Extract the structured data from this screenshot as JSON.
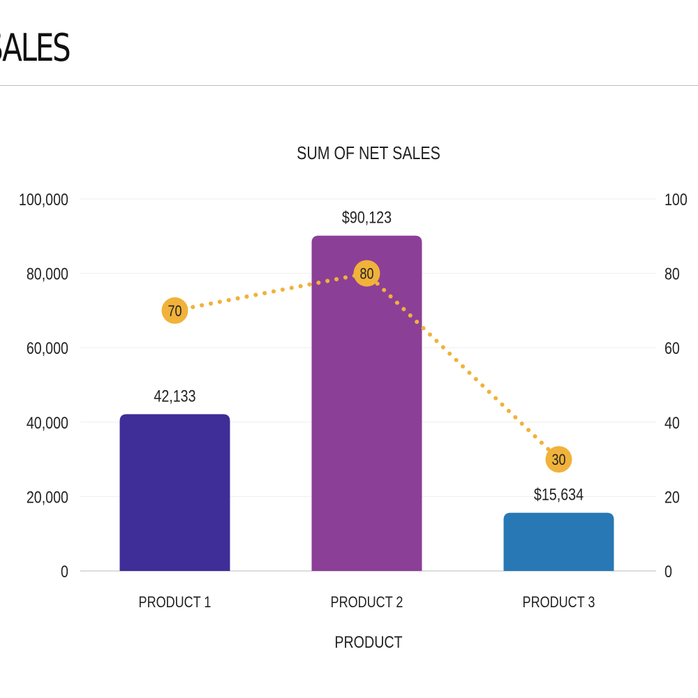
{
  "header": {
    "title": "SALES"
  },
  "chart_data": {
    "type": "bar",
    "title": "SUM OF NET SALES",
    "xlabel": "PRODUCT",
    "ylabel": "",
    "categories": [
      "PRODUCT 1",
      "PRODUCT 2",
      "PRODUCT 3"
    ],
    "series": [
      {
        "type": "bar",
        "axis": "left",
        "values": [
          42133,
          90123,
          15634
        ],
        "data_labels": [
          "42,133",
          "$90,123",
          "$15,634"
        ],
        "colors": [
          "#3f2d98",
          "#8b3f97",
          "#2878b5"
        ]
      },
      {
        "type": "line",
        "axis": "right",
        "values": [
          70,
          80,
          30
        ],
        "data_labels": [
          "70",
          "80",
          "30"
        ],
        "color": "#f0b23a",
        "style": "dotted"
      }
    ],
    "ylim": [
      0,
      100000
    ],
    "y2lim": [
      0,
      100
    ],
    "yticks": [
      "0",
      "20,000",
      "40,000",
      "60,000",
      "80,000",
      "100,000"
    ],
    "y2ticks": [
      "0",
      "20",
      "40",
      "60",
      "80",
      "100"
    ],
    "grid": true,
    "legend": "none"
  }
}
